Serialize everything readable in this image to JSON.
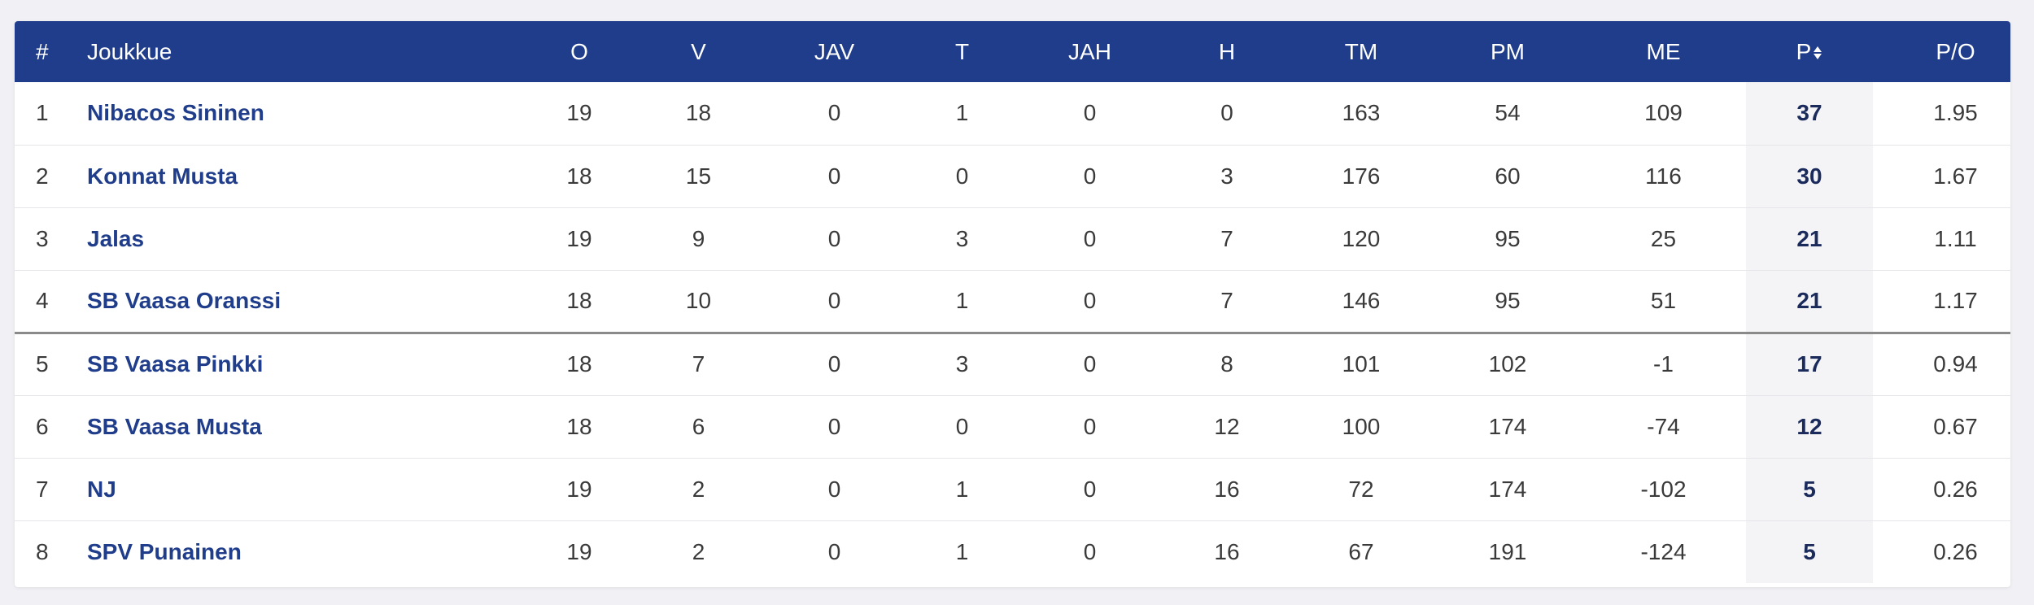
{
  "headers": {
    "rank": "#",
    "team": "Joukkue",
    "o": "O",
    "v": "V",
    "jav": "JAV",
    "t": "T",
    "jah": "JAH",
    "h": "H",
    "tm": "TM",
    "pm": "PM",
    "me": "ME",
    "p": "P",
    "po": "P/O"
  },
  "rows": [
    {
      "rank": "1",
      "team": "Nibacos Sininen",
      "o": "19",
      "v": "18",
      "jav": "0",
      "t": "1",
      "jah": "0",
      "h": "0",
      "tm": "163",
      "pm": "54",
      "me": "109",
      "p": "37",
      "po": "1.95"
    },
    {
      "rank": "2",
      "team": "Konnat Musta",
      "o": "18",
      "v": "15",
      "jav": "0",
      "t": "0",
      "jah": "0",
      "h": "3",
      "tm": "176",
      "pm": "60",
      "me": "116",
      "p": "30",
      "po": "1.67"
    },
    {
      "rank": "3",
      "team": "Jalas",
      "o": "19",
      "v": "9",
      "jav": "0",
      "t": "3",
      "jah": "0",
      "h": "7",
      "tm": "120",
      "pm": "95",
      "me": "25",
      "p": "21",
      "po": "1.11"
    },
    {
      "rank": "4",
      "team": "SB Vaasa Oranssi",
      "o": "18",
      "v": "10",
      "jav": "0",
      "t": "1",
      "jah": "0",
      "h": "7",
      "tm": "146",
      "pm": "95",
      "me": "51",
      "p": "21",
      "po": "1.17"
    },
    {
      "rank": "5",
      "team": "SB Vaasa Pinkki",
      "o": "18",
      "v": "7",
      "jav": "0",
      "t": "3",
      "jah": "0",
      "h": "8",
      "tm": "101",
      "pm": "102",
      "me": "-1",
      "p": "17",
      "po": "0.94"
    },
    {
      "rank": "6",
      "team": "SB Vaasa Musta",
      "o": "18",
      "v": "6",
      "jav": "0",
      "t": "0",
      "jah": "0",
      "h": "12",
      "tm": "100",
      "pm": "174",
      "me": "-74",
      "p": "12",
      "po": "0.67"
    },
    {
      "rank": "7",
      "team": "NJ",
      "o": "19",
      "v": "2",
      "jav": "0",
      "t": "1",
      "jah": "0",
      "h": "16",
      "tm": "72",
      "pm": "174",
      "me": "-102",
      "p": "5",
      "po": "0.26"
    },
    {
      "rank": "8",
      "team": "SPV Punainen",
      "o": "19",
      "v": "2",
      "jav": "0",
      "t": "1",
      "jah": "0",
      "h": "16",
      "tm": "67",
      "pm": "191",
      "me": "-124",
      "p": "5",
      "po": "0.26"
    }
  ],
  "colors": {
    "header_bg": "#1f3d8a",
    "team_link": "#1f3d8a",
    "points_col_bg": "#f4f4f7"
  },
  "sort_icon": "sort-icon"
}
